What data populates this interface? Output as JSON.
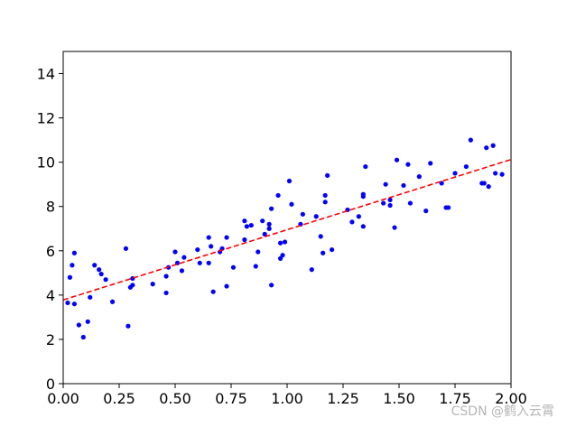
{
  "chart_data": {
    "type": "scatter",
    "title": "",
    "xlabel": "",
    "ylabel": "",
    "xlim": [
      0,
      2
    ],
    "ylim": [
      0,
      15
    ],
    "x_ticks": [
      0,
      0.25,
      0.5,
      0.75,
      1.0,
      1.25,
      1.5,
      1.75,
      2.0
    ],
    "x_tick_labels": [
      "0.00",
      "0.25",
      "0.50",
      "0.75",
      "1.00",
      "1.25",
      "1.50",
      "1.75",
      "2.00"
    ],
    "y_ticks": [
      0,
      2,
      4,
      6,
      8,
      10,
      12,
      14
    ],
    "y_tick_labels": [
      "0",
      "2",
      "4",
      "6",
      "8",
      "10",
      "12",
      "14"
    ],
    "grid": false,
    "series": [
      {
        "type": "scatter",
        "color": "#0000ff",
        "marker": "dot",
        "points": [
          [
            0.02,
            3.65
          ],
          [
            0.03,
            4.8
          ],
          [
            0.04,
            5.35
          ],
          [
            0.05,
            5.9
          ],
          [
            0.05,
            3.6
          ],
          [
            0.07,
            2.65
          ],
          [
            0.09,
            2.1
          ],
          [
            0.11,
            2.8
          ],
          [
            0.12,
            3.9
          ],
          [
            0.14,
            5.35
          ],
          [
            0.16,
            5.15
          ],
          [
            0.17,
            4.95
          ],
          [
            0.19,
            4.7
          ],
          [
            0.22,
            3.7
          ],
          [
            0.28,
            6.1
          ],
          [
            0.29,
            2.6
          ],
          [
            0.3,
            4.35
          ],
          [
            0.31,
            4.75
          ],
          [
            0.31,
            4.45
          ],
          [
            0.4,
            4.5
          ],
          [
            0.46,
            4.1
          ],
          [
            0.46,
            4.85
          ],
          [
            0.47,
            5.25
          ],
          [
            0.5,
            5.95
          ],
          [
            0.51,
            5.45
          ],
          [
            0.53,
            5.1
          ],
          [
            0.54,
            5.7
          ],
          [
            0.6,
            6.05
          ],
          [
            0.61,
            5.45
          ],
          [
            0.65,
            5.45
          ],
          [
            0.65,
            6.6
          ],
          [
            0.66,
            6.2
          ],
          [
            0.67,
            4.15
          ],
          [
            0.7,
            5.95
          ],
          [
            0.71,
            6.1
          ],
          [
            0.73,
            4.4
          ],
          [
            0.73,
            6.6
          ],
          [
            0.76,
            5.25
          ],
          [
            0.81,
            6.5
          ],
          [
            0.81,
            7.35
          ],
          [
            0.82,
            7.1
          ],
          [
            0.84,
            7.15
          ],
          [
            0.86,
            5.3
          ],
          [
            0.87,
            5.95
          ],
          [
            0.89,
            7.35
          ],
          [
            0.9,
            6.75
          ],
          [
            0.92,
            7.2
          ],
          [
            0.92,
            7.0
          ],
          [
            0.93,
            4.45
          ],
          [
            0.93,
            7.9
          ],
          [
            0.96,
            8.5
          ],
          [
            0.97,
            5.65
          ],
          [
            0.97,
            6.35
          ],
          [
            0.98,
            5.8
          ],
          [
            0.99,
            6.4
          ],
          [
            1.01,
            9.15
          ],
          [
            1.02,
            8.1
          ],
          [
            1.06,
            7.2
          ],
          [
            1.07,
            7.65
          ],
          [
            1.11,
            5.15
          ],
          [
            1.13,
            7.55
          ],
          [
            1.15,
            6.65
          ],
          [
            1.16,
            5.9
          ],
          [
            1.17,
            8.2
          ],
          [
            1.17,
            8.5
          ],
          [
            1.18,
            9.4
          ],
          [
            1.2,
            6.05
          ],
          [
            1.27,
            7.85
          ],
          [
            1.29,
            7.3
          ],
          [
            1.32,
            7.55
          ],
          [
            1.34,
            8.45
          ],
          [
            1.34,
            8.55
          ],
          [
            1.34,
            7.1
          ],
          [
            1.35,
            9.8
          ],
          [
            1.43,
            8.15
          ],
          [
            1.44,
            9.0
          ],
          [
            1.46,
            8.3
          ],
          [
            1.46,
            8.05
          ],
          [
            1.48,
            7.05
          ],
          [
            1.49,
            10.1
          ],
          [
            1.52,
            8.95
          ],
          [
            1.54,
            9.9
          ],
          [
            1.55,
            8.15
          ],
          [
            1.59,
            9.35
          ],
          [
            1.62,
            7.8
          ],
          [
            1.64,
            9.95
          ],
          [
            1.69,
            9.05
          ],
          [
            1.71,
            7.95
          ],
          [
            1.72,
            7.95
          ],
          [
            1.75,
            9.5
          ],
          [
            1.8,
            9.8
          ],
          [
            1.82,
            11.0
          ],
          [
            1.87,
            9.05
          ],
          [
            1.88,
            9.05
          ],
          [
            1.89,
            10.65
          ],
          [
            1.9,
            8.9
          ],
          [
            1.92,
            10.75
          ],
          [
            1.93,
            9.5
          ],
          [
            1.96,
            9.45
          ]
        ]
      },
      {
        "type": "line",
        "color": "#ff0000",
        "style": "dashed",
        "x": [
          0,
          2
        ],
        "y": [
          3.78,
          10.12
        ]
      }
    ]
  },
  "watermark": "CSDN @鹤入云霄"
}
